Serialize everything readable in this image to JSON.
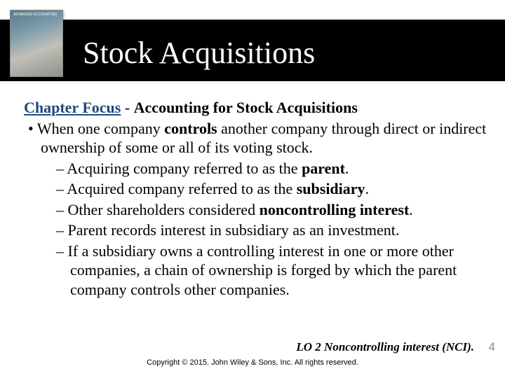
{
  "colors": {
    "title_bar_bg": "#000000",
    "title_text": "#ffffff",
    "chapter_label": "#1f497d",
    "body_text": "#000000",
    "page_num": "#888888"
  },
  "typography": {
    "title_fontsize": 44,
    "body_fontsize": 22,
    "lo_fontsize": 17,
    "copyright_fontsize": 11,
    "font_family": "Georgia, Times New Roman, serif"
  },
  "book": {
    "top_label": "ADVANCED\nACCOUNTING"
  },
  "title": "Stock Acquisitions",
  "chapter_focus": {
    "label": "Chapter Focus",
    "separator": " - ",
    "text": "Accounting for Stock Acquisitions"
  },
  "bullets": {
    "main": {
      "pre": "When one company ",
      "bold": "controls",
      "post": " another company through direct or indirect ownership of some or all of its voting stock."
    },
    "subs": [
      {
        "pre": "Acquiring company referred to as the ",
        "bold": "parent",
        "post": "."
      },
      {
        "pre": "Acquired company referred to as the ",
        "bold": "subsidiary",
        "post": "."
      },
      {
        "pre": "Other shareholders considered ",
        "bold": "noncontrolling interest",
        "post": "."
      },
      {
        "pre": "Parent records interest in subsidiary as an investment.",
        "bold": "",
        "post": ""
      },
      {
        "pre": "If a subsidiary owns a controlling interest in one or more other companies, a chain of ownership is forged by which the parent company controls other companies.",
        "bold": "",
        "post": ""
      }
    ]
  },
  "lo_line": "LO 2  Noncontrolling interest (NCI).",
  "page_number": "4",
  "copyright": "Copyright © 2015. John Wiley & Sons, Inc. All rights reserved."
}
